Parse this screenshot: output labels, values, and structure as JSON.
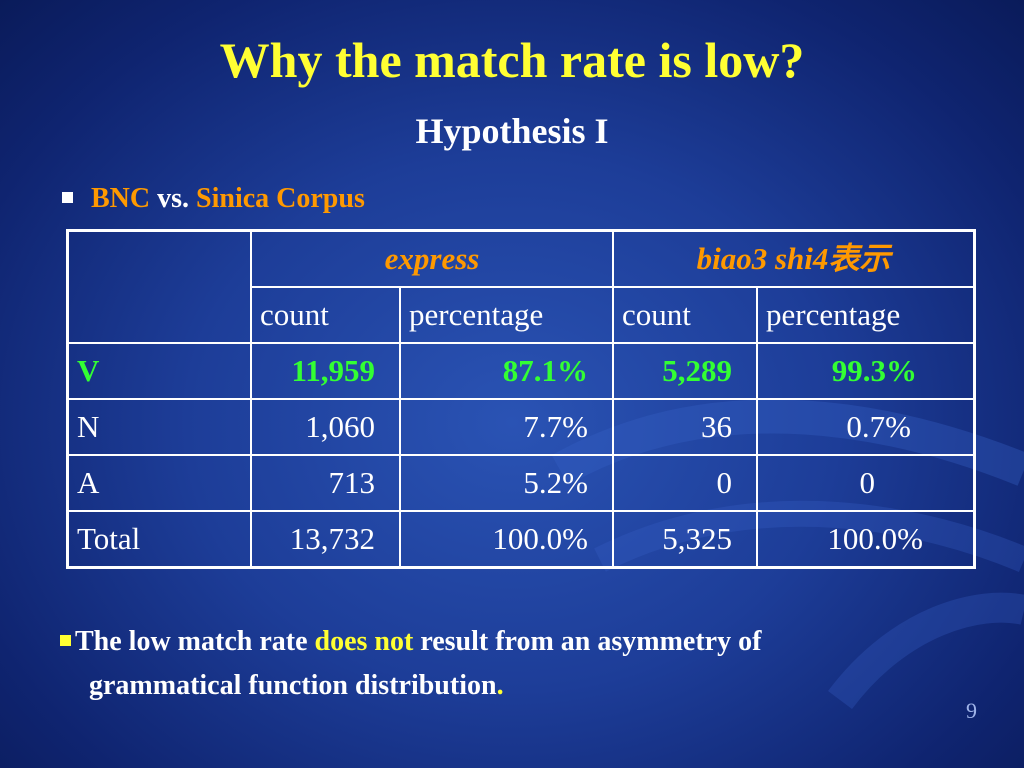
{
  "slide": {
    "title": "Why the match rate is low?",
    "subtitle": "Hypothesis I",
    "bullet1": {
      "part1": "BNC",
      "part2": " vs. ",
      "part3": "Sinica Corpus"
    },
    "table": {
      "group_headers": [
        "express",
        "biao3 shi4表示"
      ],
      "sub_headers": [
        "count",
        "percentage",
        "count",
        "percentage"
      ],
      "rows": [
        {
          "label": "V",
          "values": [
            "11,959",
            "87.1%",
            "5,289",
            "99.3%"
          ]
        },
        {
          "label": "N",
          "values": [
            "1,060",
            "7.7%",
            "36",
            "0.7%"
          ]
        },
        {
          "label": "A",
          "values": [
            "713",
            "5.2%",
            "0",
            "0"
          ]
        },
        {
          "label": "Total",
          "values": [
            "13,732",
            "100.0%",
            "5,325",
            "100.0%"
          ]
        }
      ]
    },
    "bullet2": {
      "part1": "The low match rate ",
      "part2": "does not",
      "part3": " result from an asymmetry of",
      "line2": "grammatical function distribution",
      "end": "."
    },
    "page_number": "9"
  }
}
